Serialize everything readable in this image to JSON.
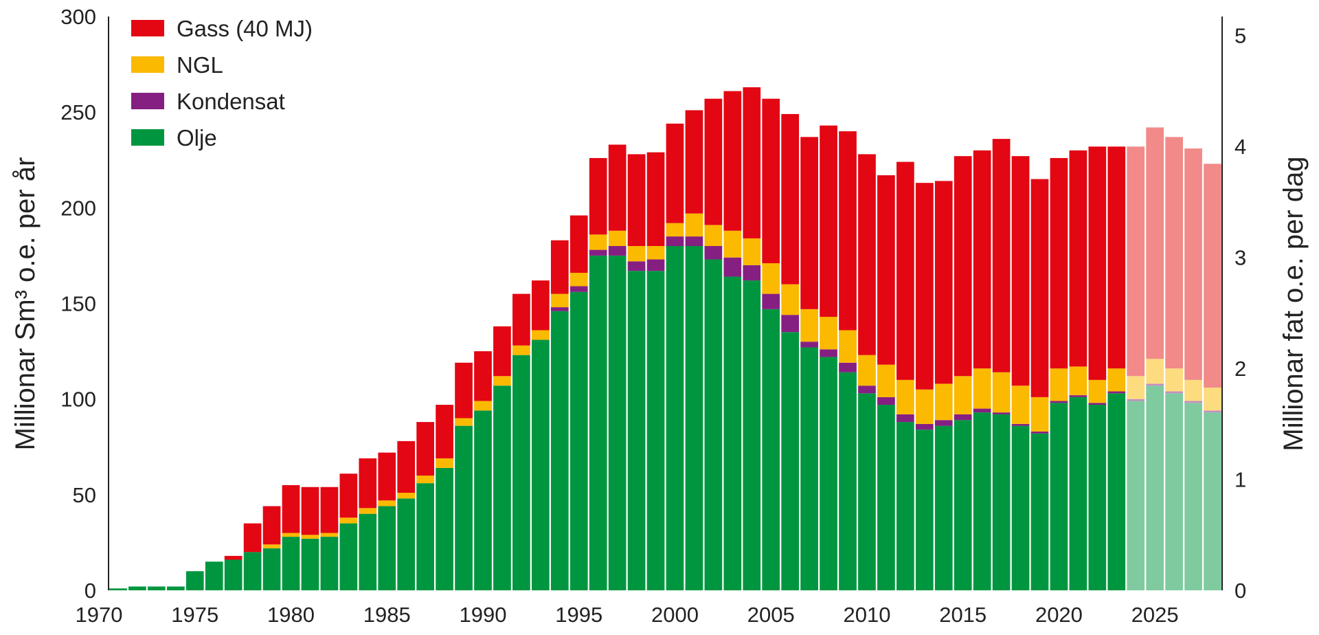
{
  "chart_data": {
    "type": "bar",
    "stacked": true,
    "x": [
      1971,
      1972,
      1973,
      1974,
      1975,
      1976,
      1977,
      1978,
      1979,
      1980,
      1981,
      1982,
      1983,
      1984,
      1985,
      1986,
      1987,
      1988,
      1989,
      1990,
      1991,
      1992,
      1993,
      1994,
      1995,
      1996,
      1997,
      1998,
      1999,
      2000,
      2001,
      2002,
      2003,
      2004,
      2005,
      2006,
      2007,
      2008,
      2009,
      2010,
      2011,
      2012,
      2013,
      2014,
      2015,
      2016,
      2017,
      2018,
      2019,
      2020,
      2021,
      2022,
      2023,
      2024,
      2025,
      2026,
      2027,
      2028
    ],
    "forecast_from": 2024,
    "series": [
      {
        "name": "Olje",
        "color": "#009640",
        "forecast_color": "#7fcb9f",
        "values": [
          1,
          2,
          2,
          2,
          10,
          15,
          16,
          20,
          22,
          28,
          27,
          28,
          35,
          40,
          44,
          48,
          56,
          64,
          86,
          94,
          107,
          123,
          131,
          146,
          156,
          175,
          175,
          167,
          167,
          180,
          180,
          173,
          164,
          162,
          147,
          135,
          127,
          122,
          114,
          103,
          97,
          88,
          84,
          86,
          89,
          93,
          92,
          86,
          82,
          98,
          101,
          97,
          103,
          99,
          107,
          103,
          98,
          93
        ]
      },
      {
        "name": "Kondensat",
        "color": "#861f82",
        "forecast_color": "#c38fc1",
        "values": [
          0,
          0,
          0,
          0,
          0,
          0,
          0,
          0,
          0,
          0,
          0,
          0,
          0,
          0,
          0,
          0,
          0,
          0,
          0,
          0,
          0,
          0,
          0,
          2,
          3,
          3,
          5,
          5,
          6,
          5,
          5,
          7,
          10,
          8,
          8,
          9,
          3,
          4,
          5,
          4,
          4,
          4,
          3,
          3,
          3,
          2,
          1,
          1,
          1,
          1,
          1,
          1,
          1,
          1,
          1,
          1,
          1,
          1
        ]
      },
      {
        "name": "NGL",
        "color": "#fbb900",
        "forecast_color": "#fddc80",
        "values": [
          0,
          0,
          0,
          0,
          0,
          0,
          0,
          0,
          2,
          2,
          2,
          2,
          3,
          3,
          3,
          3,
          4,
          5,
          4,
          5,
          5,
          5,
          5,
          7,
          7,
          8,
          8,
          8,
          7,
          7,
          12,
          11,
          14,
          14,
          16,
          16,
          17,
          17,
          17,
          16,
          17,
          18,
          18,
          19,
          20,
          21,
          21,
          20,
          18,
          17,
          15,
          12,
          12,
          12,
          13,
          12,
          11,
          12
        ]
      },
      {
        "name": "Gass (40 MJ)",
        "color": "#e30613",
        "forecast_color": "#f18a89",
        "values": [
          0,
          0,
          0,
          0,
          0,
          0,
          2,
          15,
          20,
          25,
          25,
          24,
          23,
          26,
          25,
          27,
          28,
          28,
          29,
          26,
          26,
          27,
          26,
          28,
          30,
          40,
          45,
          48,
          49,
          52,
          54,
          66,
          73,
          79,
          86,
          89,
          90,
          100,
          104,
          105,
          99,
          114,
          108,
          106,
          115,
          114,
          122,
          120,
          114,
          110,
          113,
          122,
          116,
          120,
          121,
          121,
          121,
          117
        ]
      }
    ],
    "legend": [
      "Gass (40 MJ)",
      "NGL",
      "Kondensat",
      "Olje"
    ],
    "legend_position": "top-left",
    "xticks": [
      1970,
      1975,
      1980,
      1985,
      1990,
      1995,
      2000,
      2005,
      2010,
      2015,
      2020,
      2025
    ],
    "xlim": [
      1970.5,
      2028.5
    ],
    "ylabel": "Millionar  Sm³ o.e. per år",
    "y2label": "Millionar fat o.e. per dag",
    "ylim": [
      0,
      300
    ],
    "yticks": [
      0,
      50,
      100,
      150,
      200,
      250,
      300
    ],
    "y2lim": [
      0,
      5.17
    ],
    "y2ticks": [
      0,
      1,
      2,
      3,
      4,
      5
    ],
    "grid": false
  }
}
